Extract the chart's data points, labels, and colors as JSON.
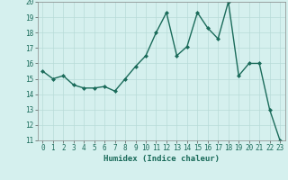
{
  "x": [
    0,
    1,
    2,
    3,
    4,
    5,
    6,
    7,
    8,
    9,
    10,
    11,
    12,
    13,
    14,
    15,
    16,
    17,
    18,
    19,
    20,
    21,
    22,
    23
  ],
  "y": [
    15.5,
    15.0,
    15.2,
    14.6,
    14.4,
    14.4,
    14.5,
    14.2,
    15.0,
    15.8,
    16.5,
    18.0,
    19.3,
    16.5,
    17.1,
    19.3,
    18.3,
    17.6,
    20.0,
    15.2,
    16.0,
    16.0,
    13.0,
    11.0
  ],
  "line_color": "#1a6b5a",
  "marker": "D",
  "markersize": 2.0,
  "linewidth": 1.0,
  "xlabel": "Humidex (Indice chaleur)",
  "ylim": [
    11,
    20
  ],
  "xlim": [
    -0.5,
    23.5
  ],
  "yticks": [
    11,
    12,
    13,
    14,
    15,
    16,
    17,
    18,
    19,
    20
  ],
  "xticks": [
    0,
    1,
    2,
    3,
    4,
    5,
    6,
    7,
    8,
    9,
    10,
    11,
    12,
    13,
    14,
    15,
    16,
    17,
    18,
    19,
    20,
    21,
    22,
    23
  ],
  "bg_color": "#d5f0ee",
  "grid_color": "#b8dbd8",
  "tick_fontsize": 5.5,
  "label_fontsize": 6.5
}
